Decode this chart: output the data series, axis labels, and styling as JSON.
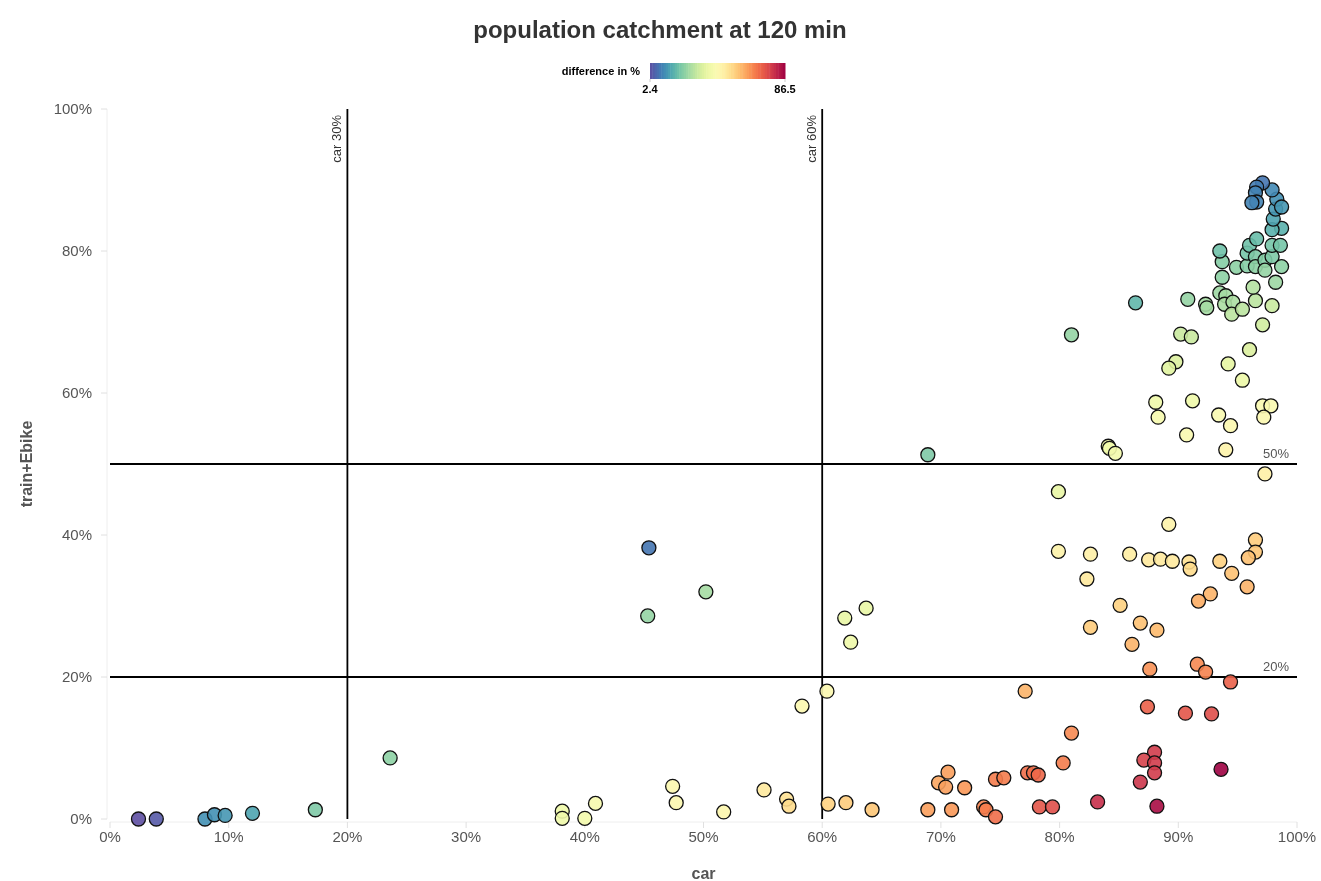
{
  "chart_data": {
    "type": "scatter",
    "title": "population catchment at 120 min",
    "xlabel": "car",
    "ylabel": "train+Ebike",
    "clabel": "difference in %",
    "clim": [
      2.4,
      86.5
    ],
    "cticks": [
      2.4,
      86.5
    ],
    "xlim": [
      0,
      100
    ],
    "ylim": [
      0,
      100
    ],
    "xticks": [
      {
        "value": 0,
        "label": "0%"
      },
      {
        "value": 10,
        "label": "10%"
      },
      {
        "value": 20,
        "label": "20%"
      },
      {
        "value": 30,
        "label": "30%"
      },
      {
        "value": 40,
        "label": "40%"
      },
      {
        "value": 50,
        "label": "50%"
      },
      {
        "value": 60,
        "label": "60%"
      },
      {
        "value": 70,
        "label": "70%"
      },
      {
        "value": 80,
        "label": "80%"
      },
      {
        "value": 90,
        "label": "90%"
      },
      {
        "value": 100,
        "label": "100%"
      }
    ],
    "yticks": [
      {
        "value": 0,
        "label": "0%"
      },
      {
        "value": 20,
        "label": "20%"
      },
      {
        "value": 40,
        "label": "40%"
      },
      {
        "value": 60,
        "label": "60%"
      },
      {
        "value": 80,
        "label": "80%"
      },
      {
        "value": 100,
        "label": "100%"
      }
    ],
    "grid": false,
    "marker": "circle",
    "ref_lines": [
      {
        "axis": "x",
        "value": 20,
        "label": "car 30%",
        "color": "#000000"
      },
      {
        "axis": "x",
        "value": 60,
        "label": "car 60%",
        "color": "#000000"
      },
      {
        "axis": "y",
        "value": 50,
        "label": "50%",
        "color": "#000000"
      },
      {
        "axis": "y",
        "value": 20,
        "label": "20%",
        "color": "#000000"
      }
    ],
    "x": [
      2.4,
      3.9,
      8.0,
      8.8,
      9.7,
      12.0,
      17.3,
      23.6,
      45.4,
      45.3,
      50.2,
      38.1,
      38.1,
      40.0,
      40.9,
      47.4,
      47.7,
      51.7,
      55.1,
      57.0,
      57.2,
      58.3,
      60.4,
      60.5,
      62.0,
      64.2,
      61.9,
      62.4,
      63.7,
      68.9,
      79.9,
      97.3,
      89.2,
      79.9,
      82.6,
      85.9,
      87.5,
      88.5,
      89.5,
      90.9,
      91.0,
      93.5,
      96.5,
      96.5,
      95.9,
      94.5,
      95.8,
      92.7,
      91.7,
      82.3,
      85.1,
      86.8,
      88.2,
      82.6,
      86.1,
      87.6,
      91.6,
      92.3,
      94.4,
      77.1,
      87.4,
      90.6,
      92.8,
      81.0,
      80.3,
      88.0,
      87.1,
      88.0,
      88.0,
      86.8,
      93.6,
      88.2,
      83.2,
      70.6,
      69.8,
      70.4,
      72.0,
      74.6,
      75.3,
      77.3,
      77.8,
      78.2,
      68.9,
      70.9,
      73.6,
      73.8,
      74.6,
      78.3,
      79.4,
      86.4,
      90.8,
      92.3,
      92.4,
      93.5,
      94.0,
      93.9,
      94.6,
      94.5,
      95.4,
      96.5,
      96.3,
      97.9,
      93.7,
      93.7,
      93.5,
      94.9,
      95.8,
      95.8,
      96.0,
      96.6,
      96.5,
      96.5,
      97.3,
      97.3,
      97.9,
      97.9,
      98.6,
      98.7,
      98.2,
      98.7,
      97.9,
      98.0,
      98.2,
      98.3,
      97.9,
      97.1,
      96.6,
      96.5,
      96.6,
      96.2,
      98.7,
      97.1,
      96.0,
      94.2,
      95.4,
      90.2,
      91.1,
      89.8,
      89.2,
      88.1,
      88.3,
      91.2,
      90.7,
      93.4,
      94.4,
      97.1,
      97.8,
      97.2,
      94.0,
      84.1,
      84.2,
      84.7,
      81.0
    ],
    "values": [
      0,
      0,
      0,
      0.6,
      0.5,
      0.8,
      1.3,
      8.6,
      38.2,
      28.6,
      32.0,
      1.1,
      0.1,
      0.1,
      2.2,
      4.6,
      2.3,
      1.0,
      4.1,
      2.8,
      1.8,
      15.9,
      18.0,
      2.1,
      2.3,
      1.3,
      28.3,
      24.9,
      29.7,
      51.3,
      46.1,
      48.6,
      41.5,
      37.7,
      37.3,
      37.3,
      36.5,
      36.6,
      36.3,
      36.2,
      35.2,
      36.3,
      39.3,
      37.6,
      36.8,
      34.6,
      32.7,
      31.7,
      30.7,
      33.8,
      30.1,
      27.6,
      26.6,
      27.0,
      24.6,
      21.1,
      21.8,
      20.7,
      19.3,
      18.0,
      15.8,
      14.9,
      14.8,
      12.1,
      7.9,
      9.4,
      8.3,
      7.9,
      6.5,
      5.2,
      7.0,
      1.8,
      2.4,
      6.6,
      5.1,
      4.5,
      4.4,
      5.6,
      5.8,
      6.5,
      6.5,
      6.2,
      1.3,
      1.3,
      1.7,
      1.3,
      0.3,
      1.7,
      1.7,
      72.7,
      73.2,
      72.5,
      72.0,
      74.1,
      73.7,
      72.5,
      72.8,
      71.1,
      71.8,
      73.0,
      74.9,
      72.3,
      76.3,
      78.5,
      80.0,
      77.7,
      77.9,
      79.7,
      80.8,
      81.7,
      79.2,
      77.8,
      78.7,
      77.3,
      79.2,
      80.8,
      80.8,
      77.8,
      75.6,
      83.2,
      83.0,
      84.5,
      85.9,
      87.3,
      88.6,
      89.6,
      89.0,
      88.2,
      86.9,
      86.8,
      86.2,
      69.6,
      66.1,
      64.1,
      61.8,
      68.3,
      67.9,
      64.4,
      63.5,
      58.7,
      56.6,
      58.9,
      54.1,
      56.9,
      55.4,
      58.2,
      58.2,
      56.6,
      52.0,
      52.5,
      52.2,
      51.5,
      68.2
    ],
    "cvalues": [
      2.4,
      4,
      12,
      12,
      13,
      15,
      22,
      24,
      8,
      25,
      27,
      40,
      40,
      41,
      42,
      45,
      45,
      46,
      50,
      52,
      53,
      45,
      45,
      55,
      56,
      57,
      38,
      40,
      38,
      22,
      38,
      48,
      47,
      47,
      48,
      49,
      50,
      50,
      50,
      52,
      53,
      55,
      56,
      57,
      58,
      58,
      60,
      60,
      61,
      50,
      55,
      58,
      59,
      56,
      60,
      65,
      66,
      67,
      72,
      60,
      72,
      74,
      75,
      66,
      68,
      78,
      77,
      78,
      78,
      79,
      86.5,
      85,
      80,
      63,
      62,
      63,
      64,
      68,
      68,
      70,
      70,
      71,
      63,
      64,
      67,
      68,
      70,
      74,
      75,
      18,
      25,
      27,
      27,
      26,
      27,
      28,
      28,
      30,
      30,
      30,
      29,
      32,
      24,
      23,
      20,
      24,
      23,
      21,
      20,
      19,
      22,
      24,
      23,
      25,
      22,
      21,
      21,
      24,
      26,
      17,
      17,
      15,
      13,
      12,
      11,
      8,
      9,
      10,
      10,
      10,
      13,
      33,
      35,
      37,
      39,
      32,
      32,
      35,
      36,
      40,
      42,
      40,
      44,
      43,
      45,
      44,
      44,
      45,
      47,
      40,
      40,
      41,
      25
    ]
  }
}
